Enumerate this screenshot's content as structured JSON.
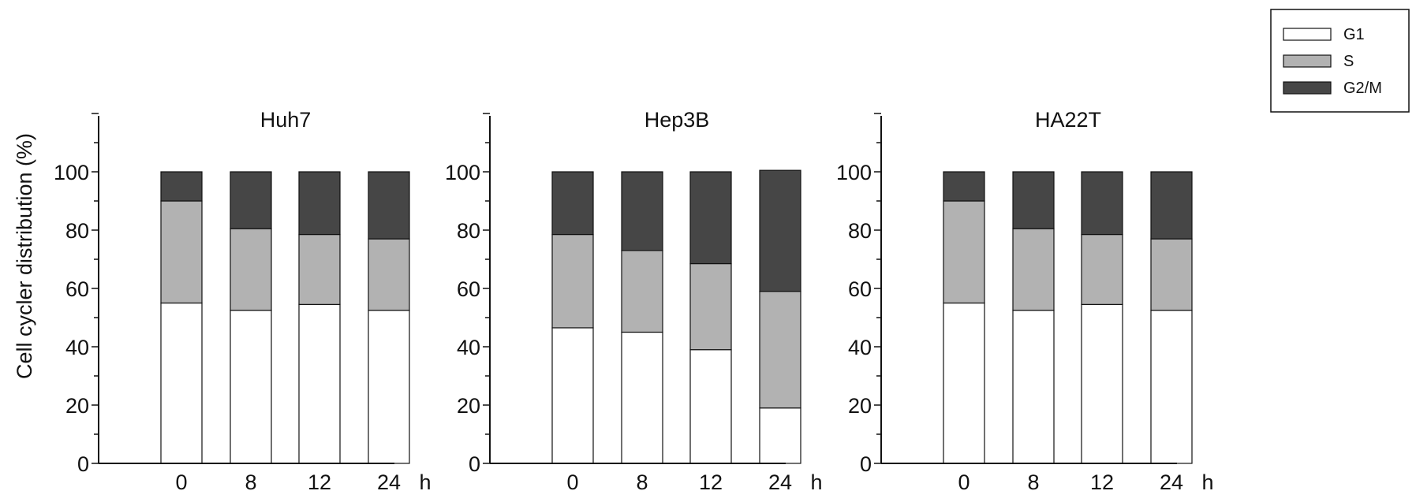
{
  "chart_data": {
    "type": "bar",
    "stacked": true,
    "ylabel": "Cell cycler distribution (%)",
    "ylim": [
      0,
      120
    ],
    "yticks": [
      "0",
      "20",
      "40",
      "60",
      "80",
      "100"
    ],
    "x_unit": "h",
    "categories": [
      "0",
      "8",
      "12",
      "24"
    ],
    "legend": {
      "placement": "top-right",
      "entries": [
        {
          "name": "G1",
          "color": "#ffffff"
        },
        {
          "name": "S",
          "color": "#b2b2b2"
        },
        {
          "name": "G2/M",
          "color": "#464646"
        }
      ]
    },
    "panels": [
      {
        "title": "Huh7",
        "series": [
          {
            "name": "G1",
            "values": [
              55,
              52.5,
              54.5,
              52.5
            ]
          },
          {
            "name": "S",
            "values": [
              35,
              28,
              24,
              24.5
            ]
          },
          {
            "name": "G2/M",
            "values": [
              10,
              19.5,
              21.5,
              23
            ]
          }
        ]
      },
      {
        "title": "Hep3B",
        "series": [
          {
            "name": "G1",
            "values": [
              46.5,
              45,
              39,
              19
            ]
          },
          {
            "name": "S",
            "values": [
              32,
              28,
              29.5,
              40
            ]
          },
          {
            "name": "G2/M",
            "values": [
              21.5,
              27,
              31.5,
              41.5
            ]
          }
        ]
      },
      {
        "title": "HA22T",
        "series": [
          {
            "name": "G1",
            "values": [
              55,
              52.5,
              54.5,
              52.5
            ]
          },
          {
            "name": "S",
            "values": [
              35,
              28,
              24,
              24.5
            ]
          },
          {
            "name": "G2/M",
            "values": [
              10,
              19.5,
              21.5,
              23
            ]
          }
        ]
      }
    ]
  }
}
